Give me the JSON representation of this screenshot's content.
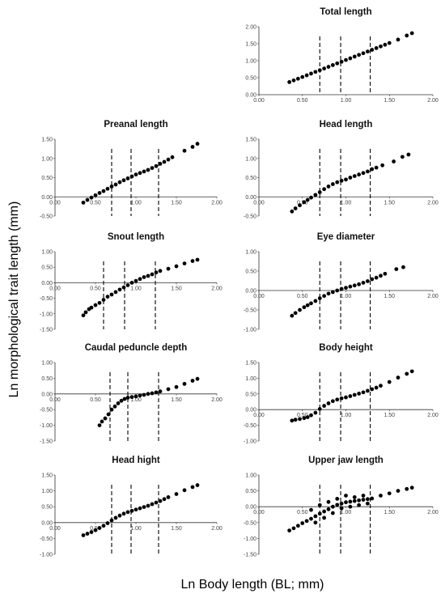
{
  "figure": {
    "ylabel": "Ln morphological trait length (mm)",
    "xlabel": "Ln Body length (BL; mm)"
  },
  "chart_data": [
    {
      "type": "scatter",
      "title": "Total length",
      "xlim": [
        0,
        2
      ],
      "ylim": [
        0,
        2
      ],
      "xticks": [
        "0.00",
        "0.50",
        "1.00",
        "1.50",
        "2.00"
      ],
      "yticks": [
        "0.00",
        "0.50",
        "1.00",
        "1.50",
        "2.00"
      ],
      "dashed_x": [
        0.7,
        0.94,
        1.28
      ],
      "points": [
        [
          0.35,
          0.37
        ],
        [
          0.4,
          0.42
        ],
        [
          0.45,
          0.47
        ],
        [
          0.5,
          0.52
        ],
        [
          0.55,
          0.57
        ],
        [
          0.6,
          0.62
        ],
        [
          0.65,
          0.67
        ],
        [
          0.7,
          0.72
        ],
        [
          0.75,
          0.77
        ],
        [
          0.8,
          0.82
        ],
        [
          0.85,
          0.87
        ],
        [
          0.9,
          0.92
        ],
        [
          0.95,
          0.97
        ],
        [
          1.0,
          1.02
        ],
        [
          1.05,
          1.07
        ],
        [
          1.1,
          1.12
        ],
        [
          1.15,
          1.17
        ],
        [
          1.2,
          1.22
        ],
        [
          1.25,
          1.27
        ],
        [
          1.3,
          1.32
        ],
        [
          1.35,
          1.37
        ],
        [
          1.4,
          1.42
        ],
        [
          1.45,
          1.47
        ],
        [
          1.5,
          1.52
        ],
        [
          1.6,
          1.62
        ],
        [
          1.7,
          1.74
        ],
        [
          1.76,
          1.81
        ]
      ]
    },
    {
      "type": "scatter",
      "title": "Preanal length",
      "xlim": [
        0,
        2
      ],
      "ylim": [
        -0.5,
        1.5
      ],
      "xticks": [
        "0.00",
        "0.50",
        "1.00",
        "1.50",
        "2.00"
      ],
      "yticks": [
        "-0.50",
        "0.00",
        "0.50",
        "1.00",
        "1.50"
      ],
      "dashed_x": [
        0.7,
        0.94,
        1.28
      ],
      "points": [
        [
          0.35,
          -0.15
        ],
        [
          0.4,
          -0.08
        ],
        [
          0.45,
          -0.02
        ],
        [
          0.5,
          0.04
        ],
        [
          0.55,
          0.1
        ],
        [
          0.6,
          0.15
        ],
        [
          0.65,
          0.21
        ],
        [
          0.7,
          0.27
        ],
        [
          0.75,
          0.32
        ],
        [
          0.8,
          0.38
        ],
        [
          0.85,
          0.43
        ],
        [
          0.9,
          0.48
        ],
        [
          0.95,
          0.53
        ],
        [
          1.0,
          0.58
        ],
        [
          1.05,
          0.62
        ],
        [
          1.1,
          0.66
        ],
        [
          1.15,
          0.7
        ],
        [
          1.2,
          0.75
        ],
        [
          1.25,
          0.8
        ],
        [
          1.3,
          0.86
        ],
        [
          1.35,
          0.91
        ],
        [
          1.4,
          0.97
        ],
        [
          1.45,
          1.03
        ],
        [
          1.6,
          1.2
        ],
        [
          1.7,
          1.3
        ],
        [
          1.76,
          1.38
        ]
      ]
    },
    {
      "type": "scatter",
      "title": "Head length",
      "xlim": [
        0,
        2
      ],
      "ylim": [
        -0.5,
        1.5
      ],
      "xticks": [
        "0.00",
        "0.50",
        "1.00",
        "1.50",
        "2.00"
      ],
      "yticks": [
        "-0.50",
        "0.00",
        "0.50",
        "1.00",
        "1.50"
      ],
      "dashed_x": [
        0.7,
        0.94,
        1.28
      ],
      "points": [
        [
          0.38,
          -0.38
        ],
        [
          0.42,
          -0.3
        ],
        [
          0.47,
          -0.22
        ],
        [
          0.52,
          -0.14
        ],
        [
          0.56,
          -0.08
        ],
        [
          0.6,
          -0.02
        ],
        [
          0.65,
          0.05
        ],
        [
          0.7,
          0.12
        ],
        [
          0.75,
          0.2
        ],
        [
          0.8,
          0.27
        ],
        [
          0.85,
          0.33
        ],
        [
          0.9,
          0.38
        ],
        [
          0.95,
          0.42
        ],
        [
          1.0,
          0.45
        ],
        [
          1.05,
          0.5
        ],
        [
          1.1,
          0.54
        ],
        [
          1.15,
          0.58
        ],
        [
          1.2,
          0.62
        ],
        [
          1.25,
          0.66
        ],
        [
          1.3,
          0.72
        ],
        [
          1.35,
          0.76
        ],
        [
          1.42,
          0.82
        ],
        [
          1.55,
          0.92
        ],
        [
          1.65,
          1.04
        ],
        [
          1.72,
          1.1
        ]
      ]
    },
    {
      "type": "scatter",
      "title": "Snout length",
      "xlim": [
        0,
        2
      ],
      "ylim": [
        -1.5,
        1.0
      ],
      "xticks": [
        "0.00",
        "0.50",
        "1.00",
        "1.50",
        "2.00"
      ],
      "yticks": [
        "-1.50",
        "-1.00",
        "-0.50",
        "0.00",
        "0.50",
        "1.00"
      ],
      "dashed_x": [
        0.6,
        0.86,
        1.24
      ],
      "points": [
        [
          0.35,
          -1.05
        ],
        [
          0.38,
          -0.95
        ],
        [
          0.42,
          -0.85
        ],
        [
          0.45,
          -0.8
        ],
        [
          0.5,
          -0.72
        ],
        [
          0.55,
          -0.65
        ],
        [
          0.6,
          -0.55
        ],
        [
          0.65,
          -0.45
        ],
        [
          0.7,
          -0.38
        ],
        [
          0.75,
          -0.3
        ],
        [
          0.8,
          -0.22
        ],
        [
          0.85,
          -0.15
        ],
        [
          0.9,
          -0.08
        ],
        [
          0.95,
          0.0
        ],
        [
          1.0,
          0.06
        ],
        [
          1.05,
          0.12
        ],
        [
          1.1,
          0.18
        ],
        [
          1.15,
          0.22
        ],
        [
          1.2,
          0.27
        ],
        [
          1.25,
          0.33
        ],
        [
          1.3,
          0.38
        ],
        [
          1.4,
          0.45
        ],
        [
          1.5,
          0.53
        ],
        [
          1.6,
          0.62
        ],
        [
          1.7,
          0.7
        ],
        [
          1.76,
          0.74
        ]
      ]
    },
    {
      "type": "scatter",
      "title": "Eye diameter",
      "xlim": [
        0,
        2
      ],
      "ylim": [
        -1.0,
        1.0
      ],
      "xticks": [
        "0.00",
        "0.50",
        "1.00",
        "1.50",
        "2.00"
      ],
      "yticks": [
        "-1.00",
        "-0.50",
        "0.00",
        "0.50",
        "1.00"
      ],
      "dashed_x": [
        0.7,
        0.94,
        1.28
      ],
      "points": [
        [
          0.38,
          -0.65
        ],
        [
          0.42,
          -0.58
        ],
        [
          0.47,
          -0.5
        ],
        [
          0.52,
          -0.43
        ],
        [
          0.56,
          -0.38
        ],
        [
          0.6,
          -0.33
        ],
        [
          0.65,
          -0.27
        ],
        [
          0.7,
          -0.2
        ],
        [
          0.75,
          -0.14
        ],
        [
          0.8,
          -0.08
        ],
        [
          0.85,
          -0.04
        ],
        [
          0.9,
          0.0
        ],
        [
          0.95,
          0.04
        ],
        [
          1.0,
          0.07
        ],
        [
          1.05,
          0.1
        ],
        [
          1.1,
          0.13
        ],
        [
          1.15,
          0.16
        ],
        [
          1.2,
          0.2
        ],
        [
          1.25,
          0.24
        ],
        [
          1.3,
          0.29
        ],
        [
          1.35,
          0.33
        ],
        [
          1.4,
          0.38
        ],
        [
          1.45,
          0.43
        ],
        [
          1.58,
          0.55
        ],
        [
          1.66,
          0.6
        ]
      ]
    },
    {
      "type": "scatter",
      "title": "Caudal peduncle depth",
      "xlim": [
        0,
        2
      ],
      "ylim": [
        -1.5,
        1.0
      ],
      "xticks": [
        "0.00",
        "0.50",
        "1.00",
        "1.50",
        "2.00"
      ],
      "yticks": [
        "-1.50",
        "-1.00",
        "-0.50",
        "0.00",
        "0.50",
        "1.00"
      ],
      "dashed_x": [
        0.68,
        0.9,
        1.28
      ],
      "points": [
        [
          0.55,
          -1.0
        ],
        [
          0.58,
          -0.88
        ],
        [
          0.62,
          -0.78
        ],
        [
          0.66,
          -0.65
        ],
        [
          0.7,
          -0.5
        ],
        [
          0.74,
          -0.4
        ],
        [
          0.78,
          -0.3
        ],
        [
          0.82,
          -0.22
        ],
        [
          0.86,
          -0.16
        ],
        [
          0.9,
          -0.12
        ],
        [
          0.95,
          -0.1
        ],
        [
          1.0,
          -0.08
        ],
        [
          1.05,
          -0.05
        ],
        [
          1.1,
          -0.03
        ],
        [
          1.15,
          0.0
        ],
        [
          1.2,
          0.02
        ],
        [
          1.25,
          0.05
        ],
        [
          1.3,
          0.08
        ],
        [
          1.4,
          0.15
        ],
        [
          1.5,
          0.22
        ],
        [
          1.6,
          0.32
        ],
        [
          1.7,
          0.42
        ],
        [
          1.76,
          0.48
        ]
      ]
    },
    {
      "type": "scatter",
      "title": "Body height",
      "xlim": [
        0,
        2
      ],
      "ylim": [
        -1.0,
        1.5
      ],
      "xticks": [
        "0.00",
        "0.50",
        "1.00",
        "1.50",
        "2.00"
      ],
      "yticks": [
        "-1.00",
        "-0.50",
        "0.00",
        "0.50",
        "1.00",
        "1.50"
      ],
      "dashed_x": [
        0.7,
        0.94,
        1.28
      ],
      "points": [
        [
          0.38,
          -0.35
        ],
        [
          0.42,
          -0.32
        ],
        [
          0.47,
          -0.3
        ],
        [
          0.52,
          -0.27
        ],
        [
          0.56,
          -0.24
        ],
        [
          0.6,
          -0.18
        ],
        [
          0.65,
          -0.1
        ],
        [
          0.7,
          0.02
        ],
        [
          0.75,
          0.12
        ],
        [
          0.8,
          0.2
        ],
        [
          0.85,
          0.27
        ],
        [
          0.9,
          0.32
        ],
        [
          0.95,
          0.36
        ],
        [
          1.0,
          0.39
        ],
        [
          1.05,
          0.43
        ],
        [
          1.1,
          0.47
        ],
        [
          1.15,
          0.51
        ],
        [
          1.2,
          0.55
        ],
        [
          1.25,
          0.6
        ],
        [
          1.3,
          0.65
        ],
        [
          1.35,
          0.7
        ],
        [
          1.4,
          0.76
        ],
        [
          1.5,
          0.88
        ],
        [
          1.6,
          1.02
        ],
        [
          1.7,
          1.14
        ],
        [
          1.76,
          1.22
        ]
      ]
    },
    {
      "type": "scatter",
      "title": "Head hight",
      "xlim": [
        0,
        2
      ],
      "ylim": [
        -1.0,
        1.5
      ],
      "xticks": [
        "0.00",
        "0.50",
        "1.00",
        "1.50",
        "2.00"
      ],
      "yticks": [
        "-1.00",
        "-0.50",
        "0.00",
        "0.50",
        "1.00",
        "1.50"
      ],
      "dashed_x": [
        0.7,
        0.94,
        1.28
      ],
      "points": [
        [
          0.35,
          -0.4
        ],
        [
          0.4,
          -0.35
        ],
        [
          0.45,
          -0.3
        ],
        [
          0.5,
          -0.24
        ],
        [
          0.55,
          -0.17
        ],
        [
          0.6,
          -0.1
        ],
        [
          0.65,
          -0.02
        ],
        [
          0.7,
          0.07
        ],
        [
          0.75,
          0.15
        ],
        [
          0.8,
          0.22
        ],
        [
          0.85,
          0.28
        ],
        [
          0.9,
          0.33
        ],
        [
          0.95,
          0.37
        ],
        [
          1.0,
          0.41
        ],
        [
          1.05,
          0.45
        ],
        [
          1.1,
          0.49
        ],
        [
          1.15,
          0.53
        ],
        [
          1.2,
          0.58
        ],
        [
          1.25,
          0.63
        ],
        [
          1.3,
          0.68
        ],
        [
          1.35,
          0.74
        ],
        [
          1.4,
          0.8
        ],
        [
          1.5,
          0.9
        ],
        [
          1.6,
          1.02
        ],
        [
          1.7,
          1.12
        ],
        [
          1.76,
          1.18
        ]
      ]
    },
    {
      "type": "scatter",
      "title": "Upper jaw length",
      "xlim": [
        0,
        2
      ],
      "ylim": [
        -1.5,
        1.0
      ],
      "xticks": [
        "0.00",
        "0.50",
        "1.00",
        "1.50",
        "2.00"
      ],
      "yticks": [
        "-1.50",
        "-1.00",
        "-0.50",
        "0.00",
        "0.50",
        "1.00"
      ],
      "dashed_x": [
        0.7,
        0.94,
        1.28
      ],
      "points": [
        [
          0.35,
          -0.75
        ],
        [
          0.4,
          -0.68
        ],
        [
          0.45,
          -0.6
        ],
        [
          0.5,
          -0.52
        ],
        [
          0.55,
          -0.45
        ],
        [
          0.6,
          -0.38
        ],
        [
          0.65,
          -0.3
        ],
        [
          0.7,
          -0.22
        ],
        [
          0.75,
          -0.15
        ],
        [
          0.8,
          -0.08
        ],
        [
          0.85,
          0.0
        ],
        [
          0.9,
          0.06
        ],
        [
          0.95,
          0.1
        ],
        [
          1.0,
          0.14
        ],
        [
          1.05,
          0.16
        ],
        [
          1.1,
          0.18
        ],
        [
          1.15,
          0.2
        ],
        [
          1.2,
          0.22
        ],
        [
          1.25,
          0.24
        ],
        [
          1.3,
          0.26
        ],
        [
          1.4,
          0.35
        ],
        [
          1.5,
          0.42
        ],
        [
          1.6,
          0.5
        ],
        [
          1.7,
          0.56
        ],
        [
          1.76,
          0.6
        ],
        [
          0.6,
          -0.1
        ],
        [
          0.7,
          0.05
        ],
        [
          0.8,
          0.15
        ],
        [
          0.9,
          0.25
        ],
        [
          1.0,
          0.35
        ],
        [
          1.1,
          0.3
        ],
        [
          1.2,
          0.35
        ],
        [
          0.75,
          -0.35
        ],
        [
          0.85,
          -0.2
        ],
        [
          0.95,
          -0.05
        ],
        [
          1.05,
          0.0
        ],
        [
          1.15,
          0.05
        ],
        [
          1.25,
          0.1
        ],
        [
          0.65,
          -0.5
        ]
      ]
    }
  ]
}
